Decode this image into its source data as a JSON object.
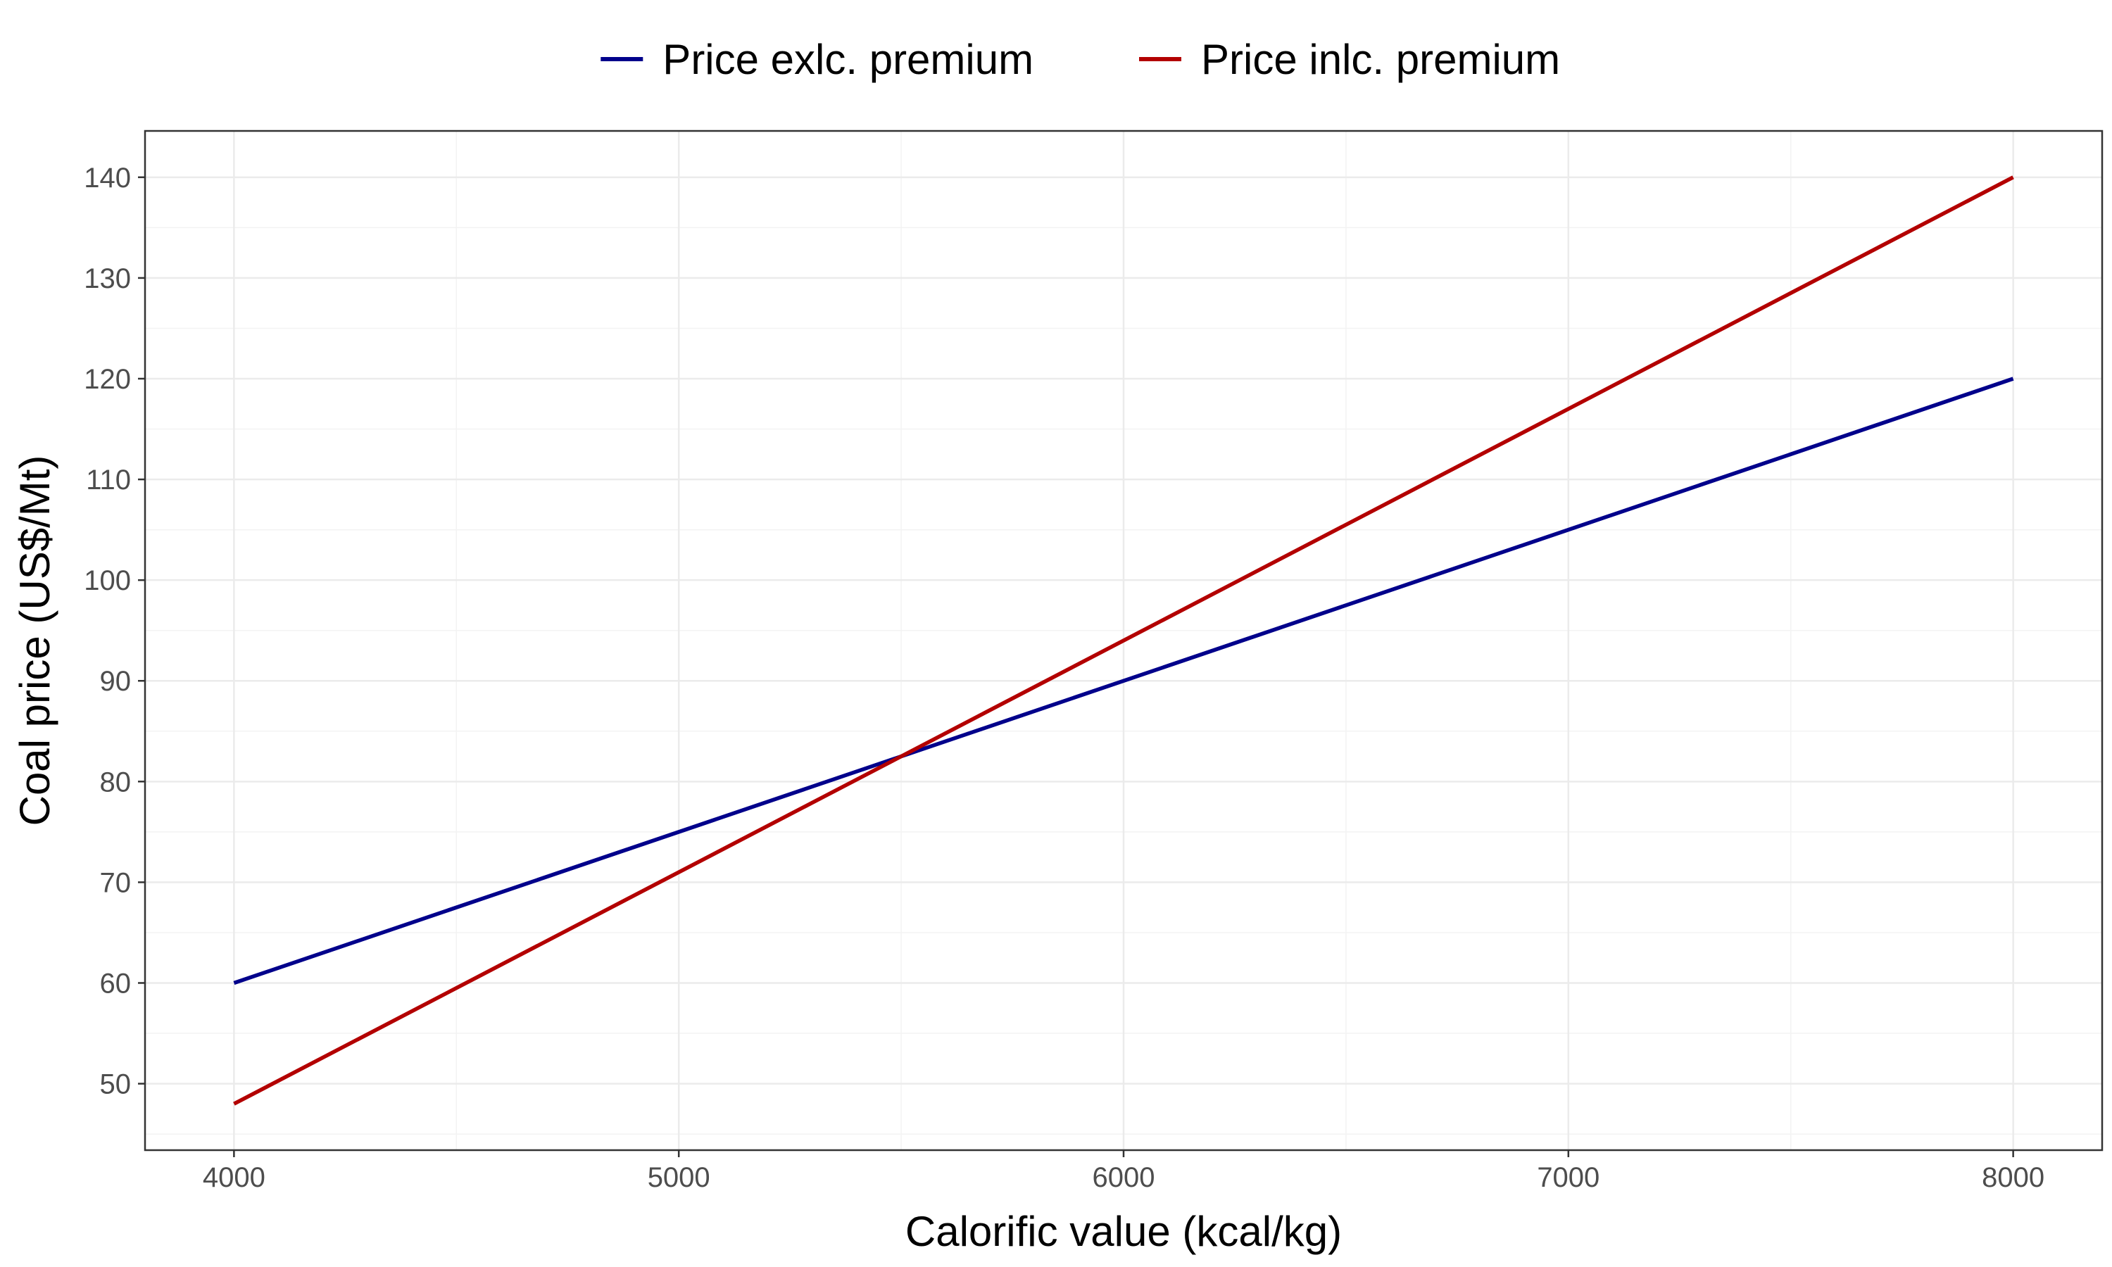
{
  "chart_data": {
    "type": "line",
    "title": "",
    "xlabel": "Calorific value (kcal/kg)",
    "ylabel": "Coal price (US$/Mt)",
    "xlim": [
      3800,
      8200
    ],
    "ylim": [
      43.4,
      144.6
    ],
    "x_ticks": [
      4000,
      5000,
      6000,
      7000,
      8000
    ],
    "y_ticks": [
      50,
      60,
      70,
      80,
      90,
      100,
      110,
      120,
      130,
      140
    ],
    "grid": true,
    "legend_position": "top",
    "series": [
      {
        "name": "Price exlc. premium",
        "color": "#00008B",
        "x": [
          4000,
          8000
        ],
        "y": [
          60,
          120
        ]
      },
      {
        "name": "Price inlc. premium",
        "color": "#B30000",
        "x": [
          4000,
          8000
        ],
        "y": [
          48,
          140
        ]
      }
    ]
  }
}
